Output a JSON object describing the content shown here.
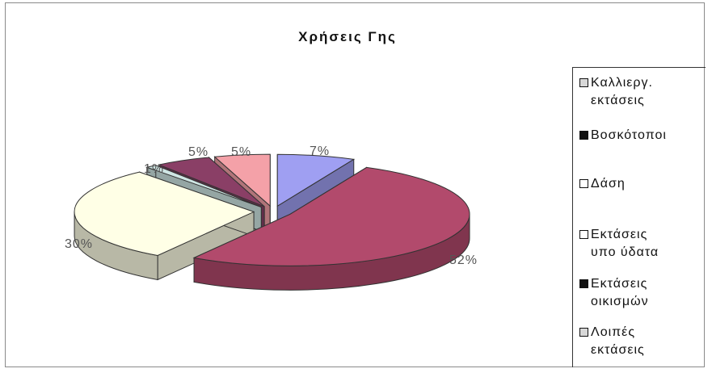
{
  "chart_data": {
    "type": "pie",
    "title": "Χρήσεις Γης",
    "legend_position": "right",
    "categories": [
      "Καλλιεργ. εκτάσεις",
      "Βοσκότοποι",
      "Δάση",
      "Εκτάσεις υπο ύδατα",
      "Εκτάσεις οικισμών",
      "Λοιπές εκτάσεις"
    ],
    "slices": [
      {
        "label": "Καλλιεργ. εκτάσεις",
        "value": 7,
        "value_label": "7%",
        "color": "#9f9ff2"
      },
      {
        "label": "Βοσκότοποι",
        "value": 52,
        "value_label": "52%",
        "color": "#b24a6c"
      },
      {
        "label": "Δάση",
        "value": 30,
        "value_label": "30%",
        "color": "#ffffe6"
      },
      {
        "label": "Εκτάσεις υπο ύδατα",
        "value": 1,
        "value_label": "1%",
        "color": "#cfe6e4"
      },
      {
        "label": "Εκτάσεις οικισμών",
        "value": 5,
        "value_label": "5%",
        "color": "#8a3f66"
      },
      {
        "label": "Λοιπές εκτάσεις",
        "value": 5,
        "value_label": "5%",
        "color": "#f4a1a8"
      }
    ]
  },
  "legend": {
    "items": [
      {
        "label": "Καλλιεργ.\nεκτάσεις",
        "swatch": "#d8d8d8"
      },
      {
        "label": "Βοσκότοποι",
        "swatch": "#111111"
      },
      {
        "label": "Δάση",
        "swatch": "#ffffff"
      },
      {
        "label": "Εκτάσεις\nυπο ύδατα",
        "swatch": "#ffffff"
      },
      {
        "label": "Εκτάσεις\nοικισμών",
        "swatch": "#111111"
      },
      {
        "label": "Λοιπές\nεκτάσεις",
        "swatch": "#d8d8d8"
      }
    ]
  }
}
